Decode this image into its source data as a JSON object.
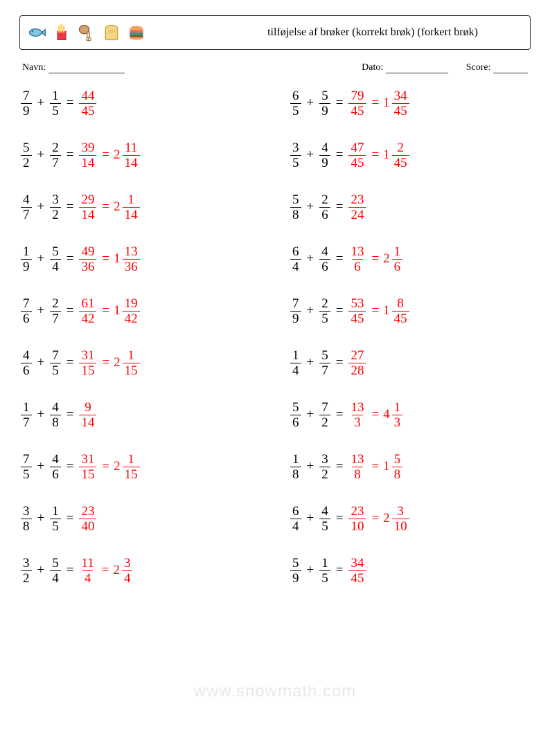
{
  "header": {
    "title": "tilføjelse af brøker (korrekt brøk) (forkert brøk)"
  },
  "labels": {
    "name": "Navn:",
    "date": "Dato:",
    "score": "Score:"
  },
  "blanks": {
    "name_width": 110,
    "date_width": 90,
    "score_width": 50
  },
  "colors": {
    "answer": "#ff0000",
    "text": "#000000",
    "border": "#333333",
    "watermark": "#e8e8e8"
  },
  "typography": {
    "problem_fontsize": 19,
    "title_fontsize": 16,
    "label_fontsize": 14
  },
  "left_column": [
    {
      "a": {
        "n": 7,
        "d": 9
      },
      "b": {
        "n": 1,
        "d": 5
      },
      "sum": {
        "n": 44,
        "d": 45
      },
      "mixed": null
    },
    {
      "a": {
        "n": 5,
        "d": 2
      },
      "b": {
        "n": 2,
        "d": 7
      },
      "sum": {
        "n": 39,
        "d": 14
      },
      "mixed": {
        "w": 2,
        "n": 11,
        "d": 14
      }
    },
    {
      "a": {
        "n": 4,
        "d": 7
      },
      "b": {
        "n": 3,
        "d": 2
      },
      "sum": {
        "n": 29,
        "d": 14
      },
      "mixed": {
        "w": 2,
        "n": 1,
        "d": 14
      }
    },
    {
      "a": {
        "n": 1,
        "d": 9
      },
      "b": {
        "n": 5,
        "d": 4
      },
      "sum": {
        "n": 49,
        "d": 36
      },
      "mixed": {
        "w": 1,
        "n": 13,
        "d": 36
      }
    },
    {
      "a": {
        "n": 7,
        "d": 6
      },
      "b": {
        "n": 2,
        "d": 7
      },
      "sum": {
        "n": 61,
        "d": 42
      },
      "mixed": {
        "w": 1,
        "n": 19,
        "d": 42
      }
    },
    {
      "a": {
        "n": 4,
        "d": 6
      },
      "b": {
        "n": 7,
        "d": 5
      },
      "sum": {
        "n": 31,
        "d": 15
      },
      "mixed": {
        "w": 2,
        "n": 1,
        "d": 15
      }
    },
    {
      "a": {
        "n": 1,
        "d": 7
      },
      "b": {
        "n": 4,
        "d": 8
      },
      "sum": {
        "n": 9,
        "d": 14
      },
      "mixed": null
    },
    {
      "a": {
        "n": 7,
        "d": 5
      },
      "b": {
        "n": 4,
        "d": 6
      },
      "sum": {
        "n": 31,
        "d": 15
      },
      "mixed": {
        "w": 2,
        "n": 1,
        "d": 15
      }
    },
    {
      "a": {
        "n": 3,
        "d": 8
      },
      "b": {
        "n": 1,
        "d": 5
      },
      "sum": {
        "n": 23,
        "d": 40
      },
      "mixed": null
    },
    {
      "a": {
        "n": 3,
        "d": 2
      },
      "b": {
        "n": 5,
        "d": 4
      },
      "sum": {
        "n": 11,
        "d": 4
      },
      "mixed": {
        "w": 2,
        "n": 3,
        "d": 4
      }
    }
  ],
  "right_column": [
    {
      "a": {
        "n": 6,
        "d": 5
      },
      "b": {
        "n": 5,
        "d": 9
      },
      "sum": {
        "n": 79,
        "d": 45
      },
      "mixed": {
        "w": 1,
        "n": 34,
        "d": 45
      }
    },
    {
      "a": {
        "n": 3,
        "d": 5
      },
      "b": {
        "n": 4,
        "d": 9
      },
      "sum": {
        "n": 47,
        "d": 45
      },
      "mixed": {
        "w": 1,
        "n": 2,
        "d": 45
      }
    },
    {
      "a": {
        "n": 5,
        "d": 8
      },
      "b": {
        "n": 2,
        "d": 6
      },
      "sum": {
        "n": 23,
        "d": 24
      },
      "mixed": null
    },
    {
      "a": {
        "n": 6,
        "d": 4
      },
      "b": {
        "n": 4,
        "d": 6
      },
      "sum": {
        "n": 13,
        "d": 6
      },
      "mixed": {
        "w": 2,
        "n": 1,
        "d": 6
      }
    },
    {
      "a": {
        "n": 7,
        "d": 9
      },
      "b": {
        "n": 2,
        "d": 5
      },
      "sum": {
        "n": 53,
        "d": 45
      },
      "mixed": {
        "w": 1,
        "n": 8,
        "d": 45
      }
    },
    {
      "a": {
        "n": 1,
        "d": 4
      },
      "b": {
        "n": 5,
        "d": 7
      },
      "sum": {
        "n": 27,
        "d": 28
      },
      "mixed": null
    },
    {
      "a": {
        "n": 5,
        "d": 6
      },
      "b": {
        "n": 7,
        "d": 2
      },
      "sum": {
        "n": 13,
        "d": 3
      },
      "mixed": {
        "w": 4,
        "n": 1,
        "d": 3
      }
    },
    {
      "a": {
        "n": 1,
        "d": 8
      },
      "b": {
        "n": 3,
        "d": 2
      },
      "sum": {
        "n": 13,
        "d": 8
      },
      "mixed": {
        "w": 1,
        "n": 5,
        "d": 8
      }
    },
    {
      "a": {
        "n": 6,
        "d": 4
      },
      "b": {
        "n": 4,
        "d": 5
      },
      "sum": {
        "n": 23,
        "d": 10
      },
      "mixed": {
        "w": 2,
        "n": 3,
        "d": 10
      }
    },
    {
      "a": {
        "n": 5,
        "d": 9
      },
      "b": {
        "n": 1,
        "d": 5
      },
      "sum": {
        "n": 34,
        "d": 45
      },
      "mixed": null
    }
  ],
  "watermark": "www.snowmath.com"
}
